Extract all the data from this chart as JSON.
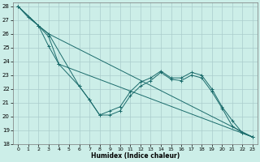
{
  "xlabel": "Humidex (Indice chaleur)",
  "background_color": "#cceee8",
  "line_color": "#1a6b6b",
  "grid_color": "#aacccc",
  "xlim": [
    -0.5,
    23.5
  ],
  "ylim": [
    18,
    28.3
  ],
  "xticks": [
    0,
    1,
    2,
    3,
    4,
    5,
    6,
    7,
    8,
    9,
    10,
    11,
    12,
    13,
    14,
    15,
    16,
    17,
    18,
    19,
    20,
    21,
    22,
    23
  ],
  "yticks": [
    18,
    19,
    20,
    21,
    22,
    23,
    24,
    25,
    26,
    27,
    28
  ],
  "series": [
    {
      "x": [
        0,
        1,
        2,
        3,
        4,
        23
      ],
      "y": [
        28.0,
        27.2,
        26.6,
        25.8,
        23.8,
        18.5
      ],
      "marker": true
    },
    {
      "x": [
        0,
        2,
        3,
        23
      ],
      "y": [
        28.0,
        26.6,
        26.0,
        18.5
      ],
      "marker": false
    },
    {
      "comment": "Third line with V shape - 0->28, 2->26.6, 3->25.1, 4->23.8, 6->22.2, 7->21.2, 8->20.1, 9->20.1, 10->20.4, 11->21.5, 12->22.2, 13->22.6, 14->23.2, 15->22.7, 16->22.6, 17->23.0, 18->22.8, 19->21.8, 20->20.6, 21->19.3, 22->18.8, 23->18.5",
      "x": [
        0,
        2,
        3,
        4,
        6,
        7,
        8,
        9,
        10,
        11,
        12,
        13,
        14,
        15,
        16,
        17,
        18,
        19,
        20,
        21,
        22,
        23
      ],
      "y": [
        28.0,
        26.6,
        25.1,
        23.8,
        22.2,
        21.2,
        20.1,
        20.1,
        20.4,
        21.5,
        22.2,
        22.6,
        23.2,
        22.7,
        22.6,
        23.0,
        22.8,
        21.8,
        20.6,
        19.3,
        18.8,
        18.5
      ],
      "marker": true
    },
    {
      "x": [
        0,
        2,
        3,
        6,
        7,
        8,
        9,
        10,
        11,
        12,
        13,
        14,
        15,
        16,
        17,
        18,
        19,
        20,
        21,
        22,
        23
      ],
      "y": [
        28.0,
        26.6,
        26.0,
        22.2,
        21.2,
        20.1,
        20.4,
        20.7,
        21.8,
        22.5,
        22.8,
        23.3,
        22.8,
        22.8,
        23.2,
        23.0,
        22.0,
        20.7,
        19.7,
        18.8,
        18.5
      ],
      "marker": true
    }
  ]
}
